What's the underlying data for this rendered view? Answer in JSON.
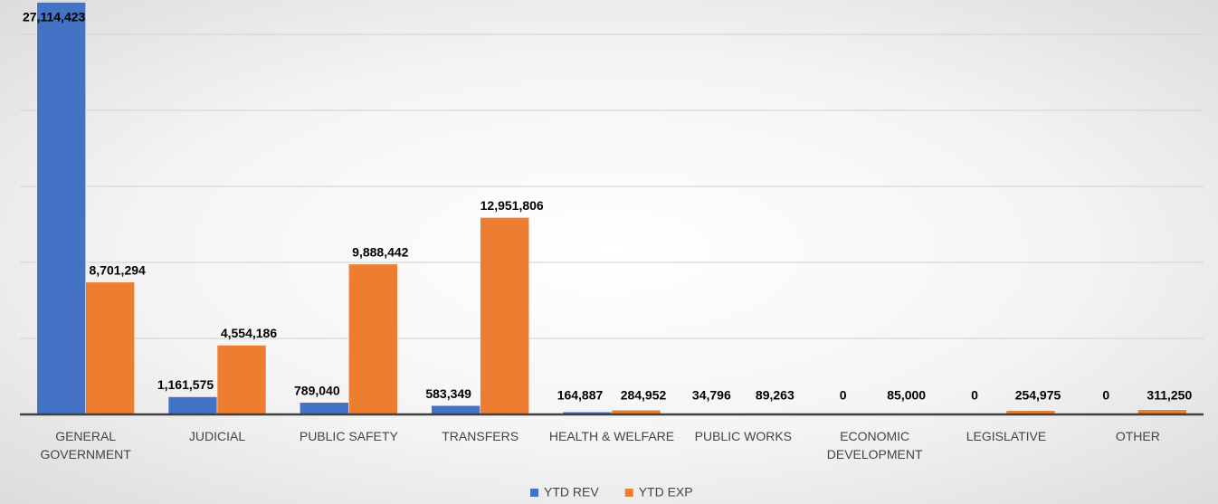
{
  "chart_data": {
    "type": "bar",
    "categories": [
      "GENERAL GOVERNMENT",
      "JUDICIAL",
      "PUBLIC SAFETY",
      "TRANSFERS",
      "HEALTH & WELFARE",
      "PUBLIC WORKS",
      "ECONOMIC DEVELOPMENT",
      "LEGISLATIVE",
      "OTHER"
    ],
    "series": [
      {
        "name": "YTD REV",
        "color": "#4472c4",
        "values": [
          27114423,
          1161575,
          789040,
          583349,
          164887,
          34796,
          0,
          0,
          0
        ],
        "value_labels": [
          "27,114,423",
          "1,161,575",
          "789,040",
          "583,349",
          "164,887",
          "34,796",
          "0",
          "0",
          "0"
        ]
      },
      {
        "name": "YTD EXP",
        "color": "#ed7d31",
        "values": [
          8701294,
          4554186,
          9888442,
          12951806,
          284952,
          89263,
          85000,
          254975,
          311250
        ],
        "value_labels": [
          "8,701,294",
          "4,554,186",
          "9,888,442",
          "12,951,806",
          "284,952",
          "89,263",
          "85,000",
          "254,975",
          "311,250"
        ]
      }
    ],
    "ylim": [
      0,
      27500000
    ],
    "yticks": [
      0,
      5000000,
      10000000,
      15000000,
      20000000,
      25000000
    ],
    "grid": true
  }
}
